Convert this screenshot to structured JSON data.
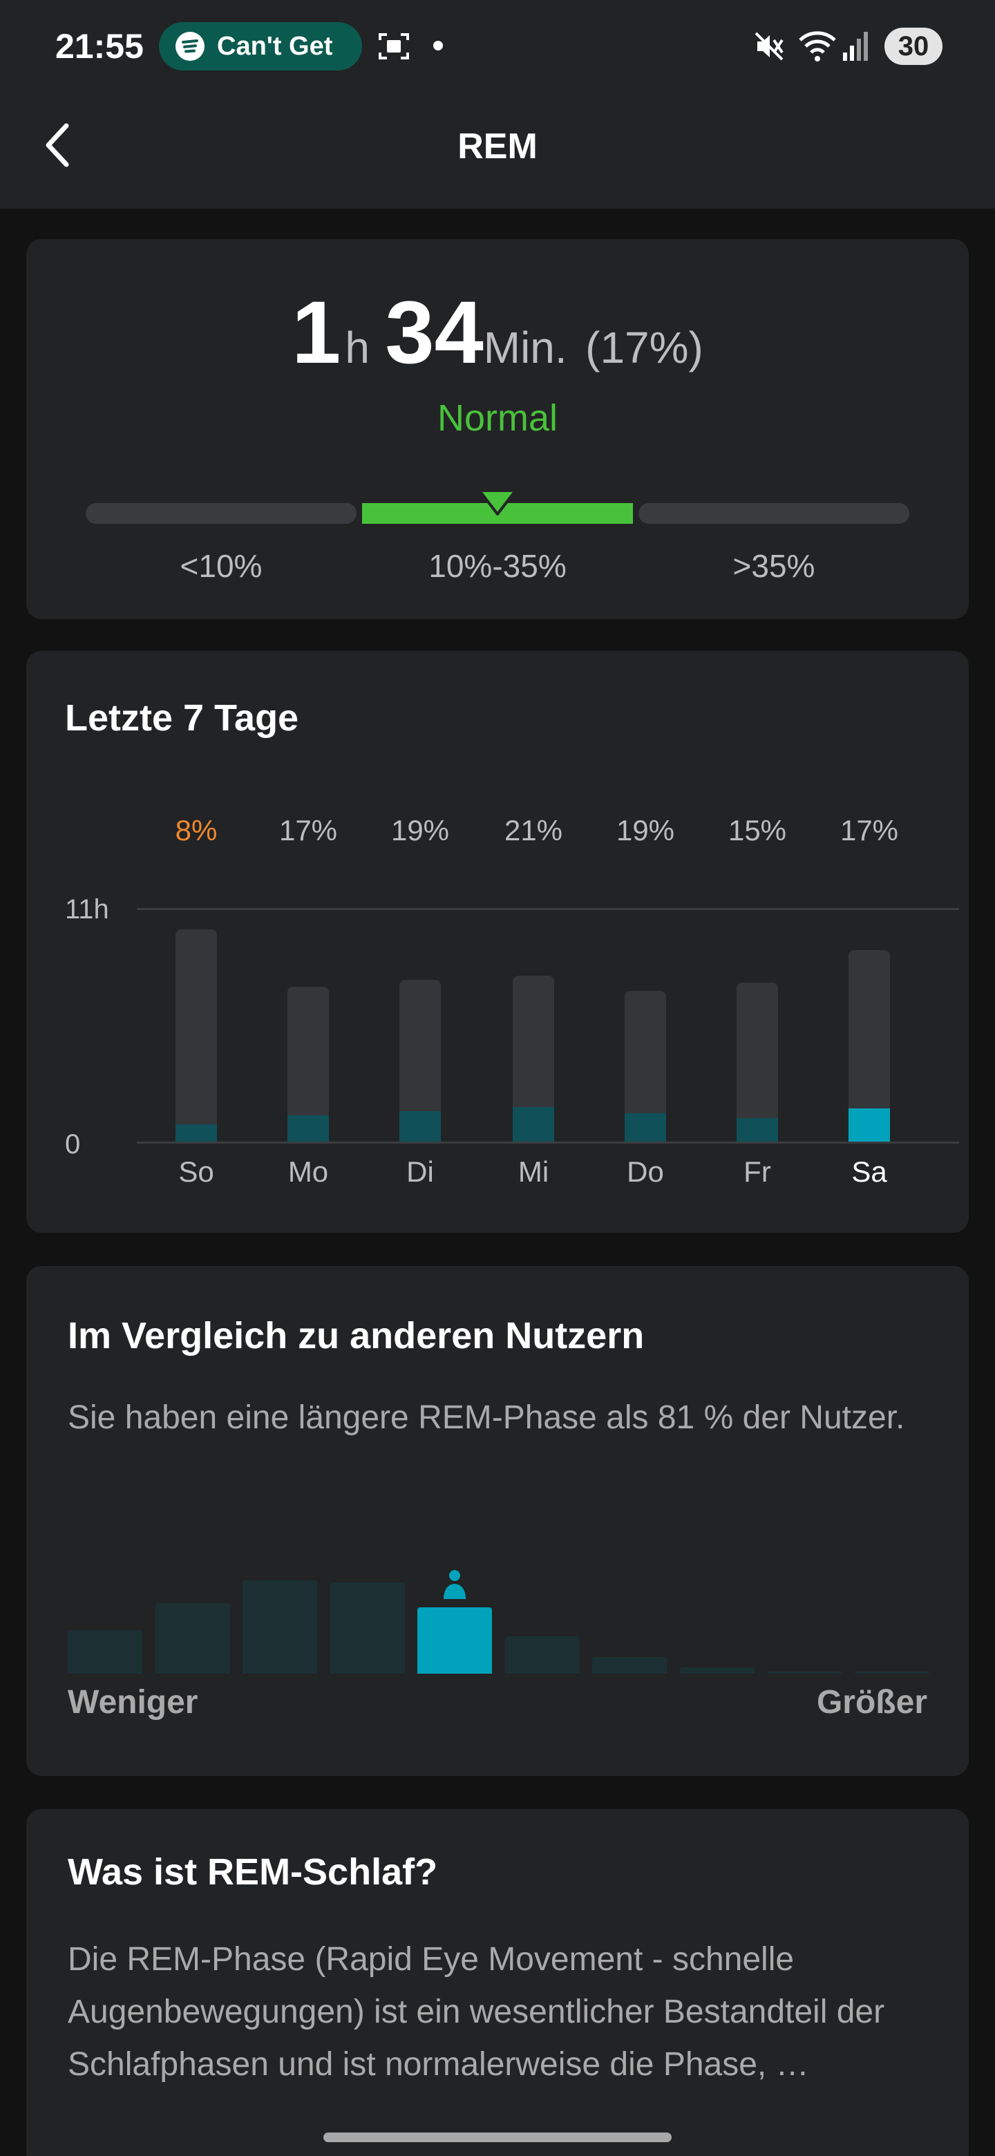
{
  "status_bar": {
    "time": "21:55",
    "media_text": "Can't Get",
    "battery": "30",
    "icons": [
      "spotify-icon",
      "screenshot-icon",
      "dot-icon",
      "mute-icon",
      "wifi-icon",
      "signal-icon",
      "battery-icon"
    ]
  },
  "header": {
    "title": "REM",
    "back_icon": "chevron-left-icon"
  },
  "summary": {
    "hours": "1",
    "hours_unit": "h",
    "minutes": "34",
    "minutes_unit": "Min.",
    "percent": "(17%)",
    "status": "Normal",
    "status_color": "#49c23b",
    "ranges": [
      "<10%",
      "10%-35%",
      ">35%"
    ],
    "current_range_index": 1
  },
  "weekly": {
    "title": "Letzte 7 Tage",
    "y_max_label": "11h",
    "y_min_label": "0",
    "highlight_color": "#f0892d",
    "accent_color": "#00a3bb"
  },
  "chart_data": {
    "type": "bar",
    "categories": [
      "So",
      "Mo",
      "Di",
      "Mi",
      "Do",
      "Fr",
      "Sa"
    ],
    "percent_labels": [
      "8%",
      "17%",
      "19%",
      "21%",
      "19%",
      "15%",
      "17%"
    ],
    "series": [
      {
        "values": [
          10.0,
          7.3,
          7.6,
          7.8,
          7.1,
          7.5,
          9.0
        ]
      },
      {
        "values": [
          0.8,
          1.24,
          1.44,
          1.64,
          1.34,
          1.1,
          1.57
        ]
      }
    ],
    "ylim": [
      0,
      11
    ],
    "selected_index": 6
  },
  "comparison": {
    "title": "Im Vergleich zu anderen Nutzern",
    "text": "Sie haben eine längere REM-Phase als 81 % der Nutzer.",
    "left_label": "Weniger",
    "right_label": "Größer",
    "distribution": [
      0.42,
      0.68,
      0.9,
      0.88,
      0.64,
      0.36,
      0.16,
      0.06,
      0.02,
      0.01
    ],
    "user_index": 4
  },
  "info": {
    "title": "Was ist REM-Schlaf?",
    "text": "Die REM-Phase (Rapid Eye Movement - schnelle Augenbewegungen) ist ein wesentlicher Bestandteil der Schlafphasen und ist normalerweise die Phase, …"
  }
}
